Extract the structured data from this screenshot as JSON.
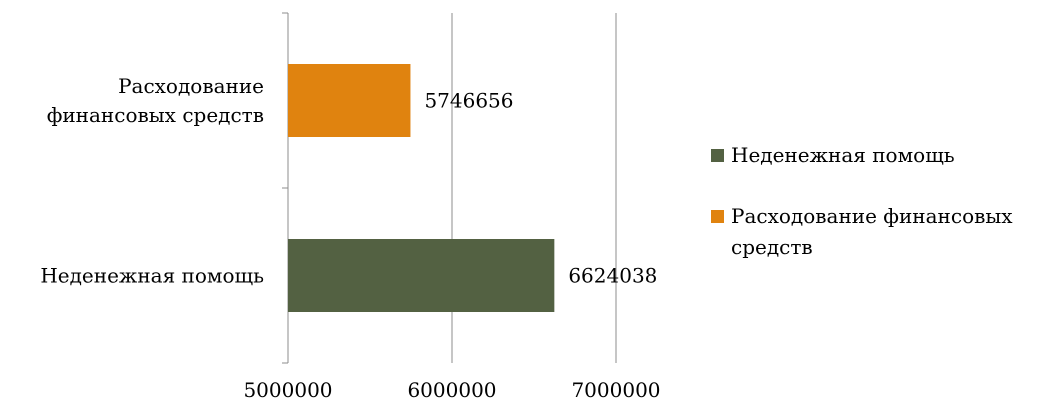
{
  "chart_data": {
    "type": "bar",
    "orientation": "horizontal",
    "title": "",
    "xlabel": "",
    "ylabel": "",
    "xlim": [
      5000000,
      7000000
    ],
    "x_ticks": [
      "5000000",
      "6000000",
      "7000000"
    ],
    "grid": true,
    "legend_position": "right",
    "bars": [
      {
        "label": "Расходование финансовых средств",
        "label_lines": [
          "Расходование",
          "финансовых средств"
        ],
        "value": 5746656,
        "value_label": "5746656",
        "color": "#e0830f"
      },
      {
        "label": "Неденежная помощь",
        "label_lines": [
          "Неденежная помощь"
        ],
        "value": 6624038,
        "value_label": "6624038",
        "color": "#536142"
      }
    ],
    "legend": [
      {
        "label": "Неденежная помощь",
        "color": "#536142"
      },
      {
        "label": "Расходование финансовых средств",
        "color": "#e0830f"
      }
    ]
  }
}
